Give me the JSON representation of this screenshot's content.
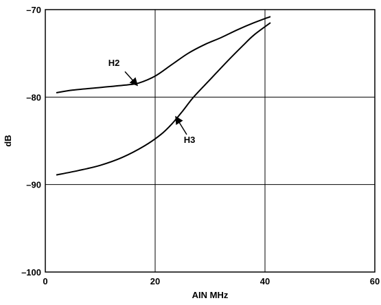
{
  "chart_data": {
    "type": "line",
    "title": "",
    "xlabel": "AIN MHz",
    "ylabel": "dB",
    "xlim": [
      0,
      60
    ],
    "ylim": [
      -100,
      -70
    ],
    "x_ticks": [
      0,
      20,
      40,
      60
    ],
    "y_ticks": [
      -70,
      -80,
      -90,
      -100
    ],
    "x_tick_labels": [
      "0",
      "20",
      "40",
      "60"
    ],
    "y_tick_labels": [
      "–70",
      "–80",
      "–90",
      "–100"
    ],
    "grid": true,
    "series": [
      {
        "name": "H2",
        "x": [
          2,
          5,
          10,
          15,
          17,
          20,
          23,
          26,
          29,
          32,
          35,
          38,
          41
        ],
        "values": [
          -79.5,
          -79.2,
          -78.9,
          -78.6,
          -78.4,
          -77.6,
          -76.3,
          -75.0,
          -74.0,
          -73.2,
          -72.3,
          -71.5,
          -70.8
        ]
      },
      {
        "name": "H3",
        "x": [
          2,
          6,
          10,
          14,
          18,
          21,
          23,
          25,
          27,
          30,
          33,
          36,
          38,
          41
        ],
        "values": [
          -88.9,
          -88.4,
          -87.8,
          -86.9,
          -85.6,
          -84.3,
          -83.1,
          -81.6,
          -80.0,
          -78.0,
          -76.0,
          -74.1,
          -72.9,
          -71.5
        ]
      }
    ],
    "annotations": [
      {
        "text": "H2",
        "series": "H2",
        "x": 16.5,
        "y": -78.5
      },
      {
        "text": "H3",
        "series": "H3",
        "x": 24,
        "y": -82.4
      }
    ]
  }
}
